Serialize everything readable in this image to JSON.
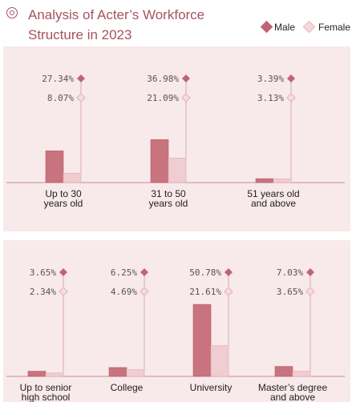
{
  "title": "Analysis of Acter’s Workforce Structure in 2023",
  "legend": {
    "male_label": "Male",
    "female_label": "Female"
  },
  "colors": {
    "male": "#c8737d",
    "male_marker": "#c06473",
    "female": "#efcdd0",
    "panel": "#f8e9ea",
    "title": "#a8525e"
  },
  "chart_data": [
    {
      "type": "bar",
      "title": "",
      "categories": [
        "Up to 30 years old",
        "31 to 50 years old",
        "51 years old and above"
      ],
      "series": [
        {
          "name": "Male",
          "values": [
            27.34,
            36.98,
            3.39
          ]
        },
        {
          "name": "Female",
          "values": [
            8.07,
            21.09,
            3.13
          ]
        }
      ],
      "value_labels": {
        "Male": [
          "27.34%",
          "36.98%",
          "3.39%"
        ],
        "Female": [
          "8.07%",
          "21.09%",
          "3.13%"
        ]
      },
      "ylim": [
        0,
        60
      ]
    },
    {
      "type": "bar",
      "title": "",
      "categories": [
        "Up to senior high school",
        "College",
        "University",
        "Master’s degree and above"
      ],
      "series": [
        {
          "name": "Male",
          "values": [
            3.65,
            6.25,
            50.78,
            7.03
          ]
        },
        {
          "name": "Female",
          "values": [
            2.34,
            4.69,
            21.61,
            3.65
          ]
        }
      ],
      "value_labels": {
        "Male": [
          "3.65%",
          "6.25%",
          "50.78%",
          "7.03%"
        ],
        "Female": [
          "2.34%",
          "4.69%",
          "21.61%",
          "3.65%"
        ]
      },
      "ylim": [
        0,
        60
      ]
    }
  ]
}
